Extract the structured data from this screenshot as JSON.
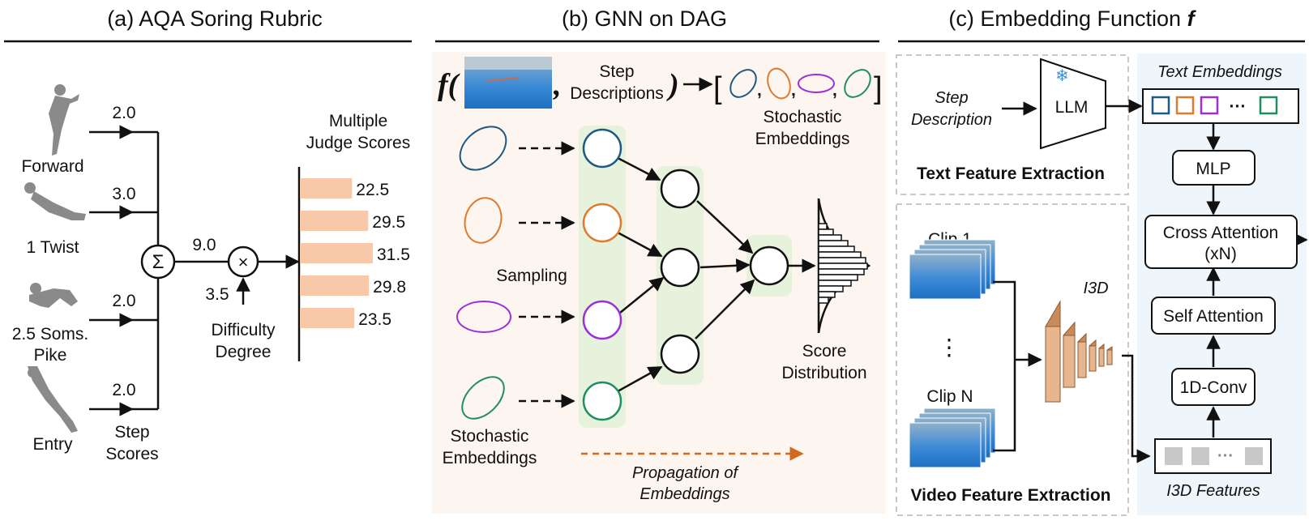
{
  "panel_a": {
    "title": "(a) AQA Soring Rubric",
    "steps": [
      {
        "label": "Forward",
        "score": "2.0"
      },
      {
        "label": "1 Twist",
        "score": "3.0"
      },
      {
        "label_line1": "2.5 Soms.",
        "label_line2": "Pike",
        "score": "2.0"
      },
      {
        "label": "Entry",
        "score": "2.0"
      }
    ],
    "step_scores_line1": "Step",
    "step_scores_line2": "Scores",
    "sum_symbol": "Σ",
    "sum_value": "9.0",
    "times_symbol": "×",
    "difficulty_value": "3.5",
    "difficulty_line1": "Difficulty",
    "difficulty_line2": "Degree",
    "judge_line1": "Multiple",
    "judge_line2": "Judge Scores",
    "judge_scores": [
      22.5,
      29.5,
      31.5,
      29.8,
      23.5
    ],
    "judge_labels": [
      "22.5",
      "29.5",
      "31.5",
      "29.8",
      "23.5"
    ],
    "bar_color": "#f8c9a8"
  },
  "panel_b": {
    "title": "(b) GNN on DAG",
    "f_label": "f(",
    "comma": ",",
    "step_desc_line1": "Step",
    "step_desc_line2": "Descriptions",
    "close_paren": ")",
    "stoch_emb_top_line1": "Stochastic",
    "stoch_emb_top_line2": "Embeddings",
    "sampling": "Sampling",
    "stoch_emb_bottom_line1": "Stochastic",
    "stoch_emb_bottom_line2": "Embeddings",
    "score_dist_line1": "Score",
    "score_dist_line2": "Distribution",
    "propagation_line1": "Propagation of",
    "propagation_line2": "Embeddings",
    "embedding_colors": [
      "#1f5a84",
      "#e07b2d",
      "#9b30d9",
      "#1f8f5f"
    ],
    "background": "#fdf5ef",
    "column_highlight": "#e6f2dc",
    "propagation_color": "#d2691e"
  },
  "panel_c": {
    "title": "(c) Embedding Function f",
    "title_text": "(c) Embedding Function ",
    "title_f": "f",
    "step_desc_line1": "Step",
    "step_desc_line2": "Description",
    "llm": "LLM",
    "snowflake": "❄",
    "text_feature_extraction": "Text Feature Extraction",
    "text_embeddings": "Text Embeddings",
    "ellipsis": "···",
    "mlp": "MLP",
    "cross_attention_line1": "Cross Attention",
    "cross_attention_line2": "(xN)",
    "self_attention": "Self Attention",
    "conv": "1D-Conv",
    "i3d": "I3D",
    "i3d_features": "I3D Features",
    "clip1": "Clip 1",
    "clip_dots": "⋮",
    "clipN": "Clip N",
    "video_feature_extraction": "Video Feature Extraction",
    "right_background": "#eef5fb",
    "i3d_colors": [
      "#c98b5a",
      "#e9b58c"
    ]
  }
}
